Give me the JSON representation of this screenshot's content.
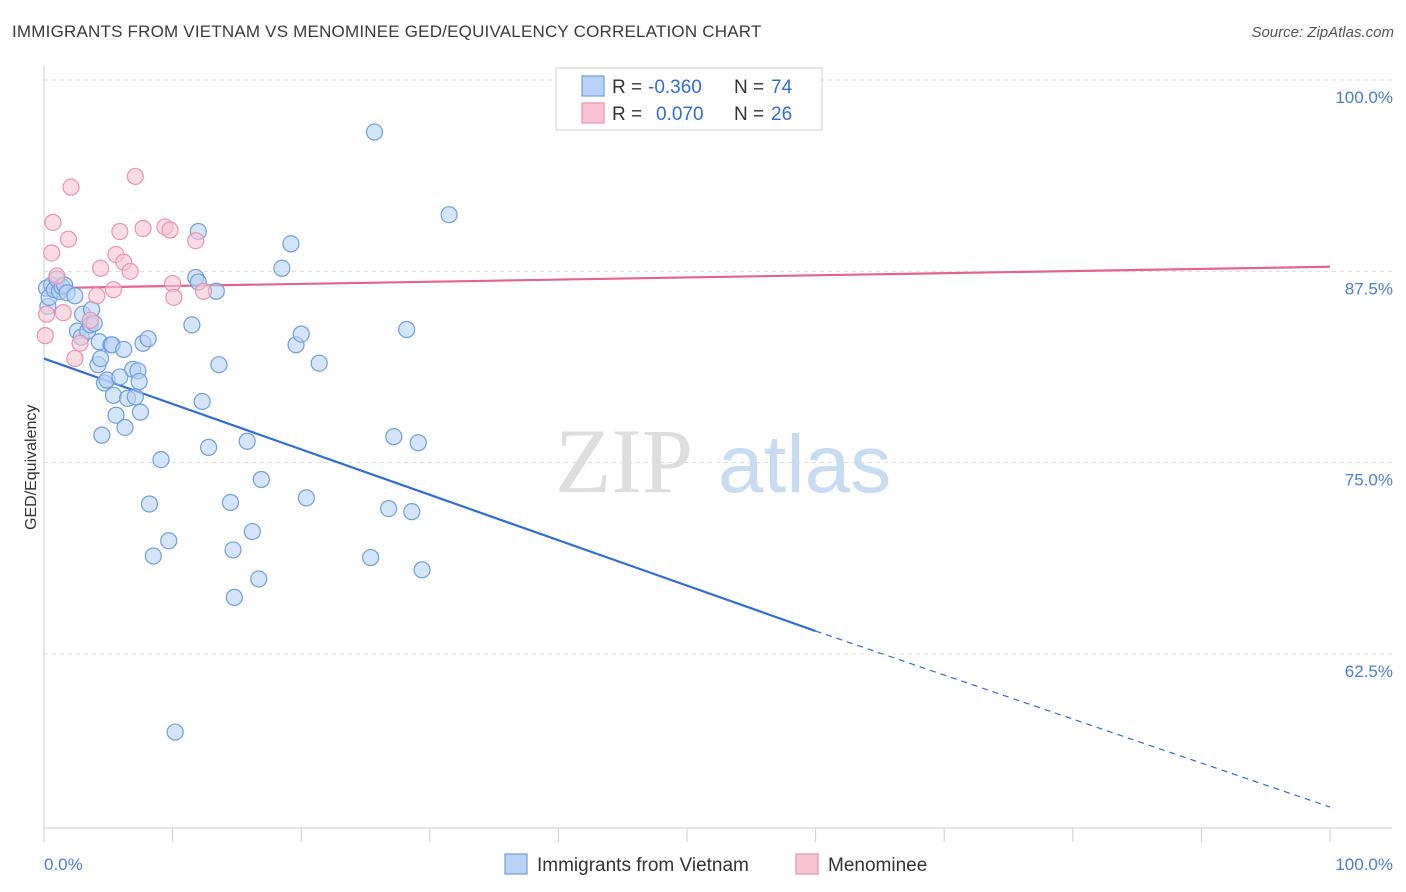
{
  "title": "IMMIGRANTS FROM VIETNAM VS MENOMINEE GED/EQUIVALENCY CORRELATION CHART",
  "source": "Source: ZipAtlas.com",
  "watermark": {
    "zip": "ZIP",
    "atlas": "atlas"
  },
  "legend": {
    "rows": [
      {
        "r_label": "R =",
        "r_value": "-0.360",
        "n_label": "N =",
        "n_value": "74"
      },
      {
        "r_label": "R =",
        "r_value": "0.070",
        "n_label": "N =",
        "n_value": "26"
      }
    ]
  },
  "bottom_legend": [
    "Immigrants from Vietnam",
    "Menominee"
  ],
  "chart_data": {
    "type": "scatter",
    "title": "IMMIGRANTS FROM VIETNAM VS MENOMINEE GED/EQUIVALENCY CORRELATION CHART",
    "xlabel": "",
    "ylabel": "GED/Equivalency",
    "xlim": [
      0,
      100
    ],
    "ylim": [
      52,
      101
    ],
    "x_tick_labels": [
      "0.0%",
      "100.0%"
    ],
    "y_ticks": [
      62.5,
      75.0,
      87.5,
      100.0
    ],
    "y_tick_labels": [
      "62.5%",
      "75.0%",
      "87.5%",
      "100.0%"
    ],
    "grid": true,
    "legend_position": "top-center",
    "colors": {
      "vietnam_fill": "#b8d2f5",
      "vietnam_stroke": "#6f9fdc",
      "vietnam_line": "#2e6fd6",
      "menominee_fill": "#f8c4d4",
      "menominee_stroke": "#e993b0",
      "menominee_line": "#e4648f"
    },
    "series": [
      {
        "name": "Immigrants from Vietnam",
        "points": [
          [
            0.2,
            86.4
          ],
          [
            0.3,
            85.2
          ],
          [
            0.4,
            85.8
          ],
          [
            0.6,
            86.6
          ],
          [
            0.8,
            86.3
          ],
          [
            1.0,
            87.0
          ],
          [
            1.2,
            86.2
          ],
          [
            1.4,
            86.5
          ],
          [
            1.6,
            86.6
          ],
          [
            1.8,
            86.1
          ],
          [
            2.4,
            85.9
          ],
          [
            2.6,
            83.6
          ],
          [
            2.9,
            83.2
          ],
          [
            3.0,
            84.7
          ],
          [
            3.4,
            83.6
          ],
          [
            3.6,
            84.0
          ],
          [
            3.7,
            85.0
          ],
          [
            3.9,
            84.1
          ],
          [
            4.2,
            81.4
          ],
          [
            4.3,
            82.9
          ],
          [
            4.4,
            81.8
          ],
          [
            4.5,
            76.8
          ],
          [
            4.7,
            80.2
          ],
          [
            4.9,
            80.4
          ],
          [
            5.2,
            82.7
          ],
          [
            5.3,
            82.7
          ],
          [
            5.4,
            79.4
          ],
          [
            5.6,
            78.1
          ],
          [
            5.9,
            80.6
          ],
          [
            6.2,
            82.4
          ],
          [
            6.3,
            77.3
          ],
          [
            6.5,
            79.2
          ],
          [
            6.9,
            81.1
          ],
          [
            7.1,
            79.3
          ],
          [
            7.3,
            81.0
          ],
          [
            7.4,
            80.3
          ],
          [
            7.5,
            78.3
          ],
          [
            7.7,
            82.8
          ],
          [
            8.1,
            83.1
          ],
          [
            8.2,
            72.3
          ],
          [
            8.5,
            68.9
          ],
          [
            9.1,
            75.2
          ],
          [
            9.7,
            69.9
          ],
          [
            10.2,
            57.4
          ],
          [
            11.5,
            84.0
          ],
          [
            11.8,
            87.1
          ],
          [
            12.0,
            90.1
          ],
          [
            12.0,
            86.8
          ],
          [
            12.3,
            79.0
          ],
          [
            12.8,
            76.0
          ],
          [
            13.4,
            86.2
          ],
          [
            13.6,
            81.4
          ],
          [
            14.5,
            72.4
          ],
          [
            14.7,
            69.3
          ],
          [
            14.8,
            66.2
          ],
          [
            15.8,
            76.4
          ],
          [
            16.2,
            70.5
          ],
          [
            16.7,
            67.4
          ],
          [
            16.9,
            73.9
          ],
          [
            18.5,
            87.7
          ],
          [
            19.2,
            89.3
          ],
          [
            19.6,
            82.7
          ],
          [
            20.0,
            83.4
          ],
          [
            20.4,
            72.7
          ],
          [
            21.4,
            81.5
          ],
          [
            25.4,
            68.8
          ],
          [
            25.7,
            96.6
          ],
          [
            26.8,
            72.0
          ],
          [
            27.2,
            76.7
          ],
          [
            28.2,
            83.7
          ],
          [
            28.6,
            71.8
          ],
          [
            29.1,
            76.3
          ],
          [
            29.4,
            68.0
          ],
          [
            31.5,
            91.2
          ]
        ]
      },
      {
        "name": "Menominee",
        "points": [
          [
            0.1,
            83.3
          ],
          [
            0.2,
            84.7
          ],
          [
            0.6,
            88.7
          ],
          [
            0.7,
            90.7
          ],
          [
            1.0,
            87.2
          ],
          [
            1.5,
            84.8
          ],
          [
            1.9,
            89.6
          ],
          [
            2.1,
            93.0
          ],
          [
            2.4,
            81.8
          ],
          [
            2.8,
            82.8
          ],
          [
            3.6,
            84.3
          ],
          [
            4.1,
            85.9
          ],
          [
            4.4,
            87.7
          ],
          [
            5.4,
            86.3
          ],
          [
            5.6,
            88.6
          ],
          [
            5.9,
            90.1
          ],
          [
            6.2,
            88.1
          ],
          [
            6.7,
            87.5
          ],
          [
            7.1,
            93.7
          ],
          [
            7.7,
            90.3
          ],
          [
            9.4,
            90.4
          ],
          [
            9.8,
            90.2
          ],
          [
            10.0,
            86.7
          ],
          [
            10.1,
            85.8
          ],
          [
            11.8,
            89.5
          ],
          [
            12.4,
            86.2
          ]
        ]
      }
    ],
    "trendlines": [
      {
        "name": "Immigrants from Vietnam",
        "x": [
          0,
          60,
          100
        ],
        "y": [
          81.8,
          64.0,
          52.5
        ]
      },
      {
        "name": "Menominee",
        "x": [
          0,
          100
        ],
        "y": [
          86.4,
          87.8
        ]
      }
    ]
  }
}
